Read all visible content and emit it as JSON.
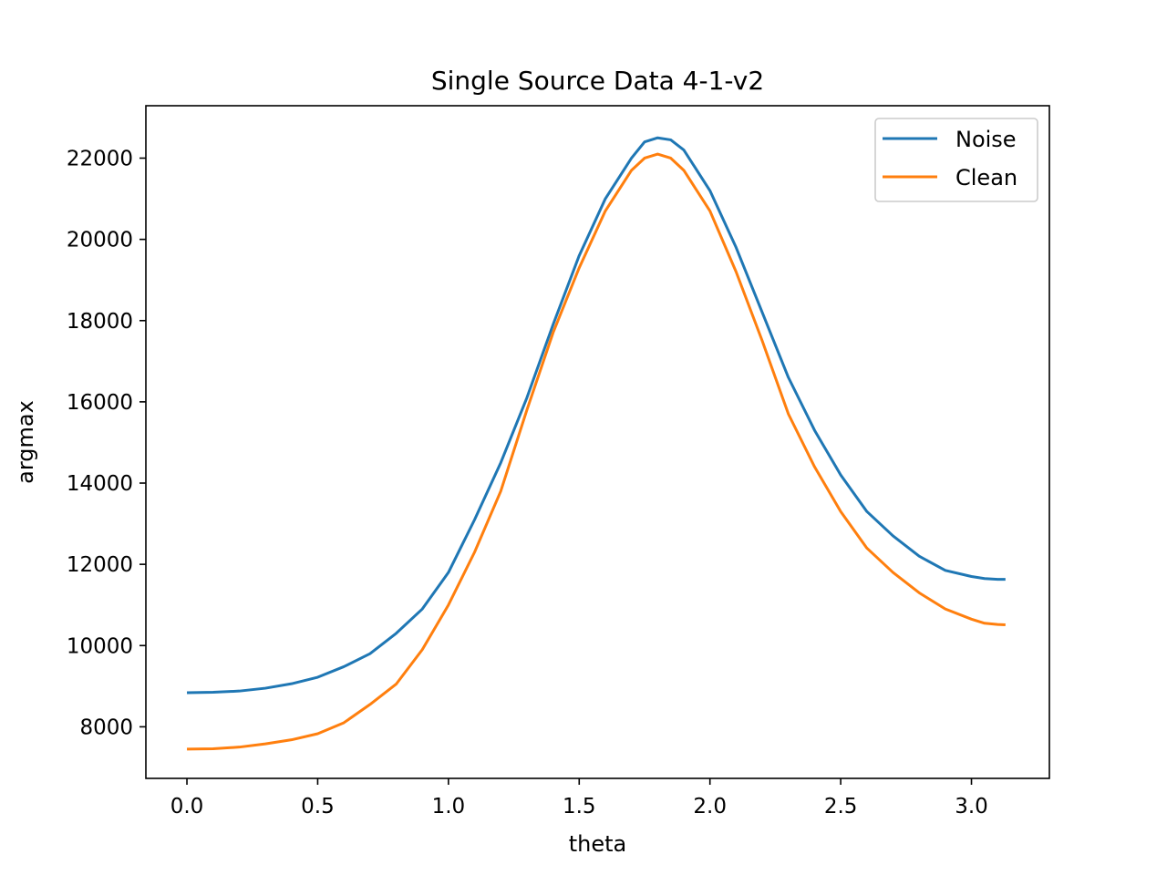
{
  "chart_data": {
    "type": "line",
    "title": "Single Source Data 4-1-v2",
    "xlabel": "theta",
    "ylabel": "argmax",
    "xlim": [
      -0.157,
      3.298
    ],
    "ylim": [
      6730,
      23290
    ],
    "xticks": [
      0.0,
      0.5,
      1.0,
      1.5,
      2.0,
      2.5,
      3.0
    ],
    "xtick_labels": [
      "0.0",
      "0.5",
      "1.0",
      "1.5",
      "2.0",
      "2.5",
      "3.0"
    ],
    "yticks": [
      8000,
      10000,
      12000,
      14000,
      16000,
      18000,
      20000,
      22000
    ],
    "ytick_labels": [
      "8000",
      "10000",
      "12000",
      "14000",
      "16000",
      "18000",
      "20000",
      "22000"
    ],
    "grid": false,
    "legend_position": "top-right",
    "series": [
      {
        "name": "Noise",
        "color": "#1f77b4",
        "x": [
          0.0,
          0.1,
          0.2,
          0.3,
          0.4,
          0.5,
          0.6,
          0.7,
          0.8,
          0.9,
          1.0,
          1.1,
          1.2,
          1.3,
          1.4,
          1.5,
          1.6,
          1.7,
          1.75,
          1.8,
          1.85,
          1.9,
          2.0,
          2.1,
          2.2,
          2.3,
          2.4,
          2.5,
          2.6,
          2.7,
          2.8,
          2.9,
          3.0,
          3.05,
          3.1,
          3.13
        ],
        "y": [
          8840,
          8850,
          8880,
          8950,
          9060,
          9220,
          9480,
          9800,
          10300,
          10900,
          11800,
          13100,
          14500,
          16100,
          17900,
          19600,
          21000,
          22000,
          22400,
          22500,
          22450,
          22200,
          21200,
          19800,
          18200,
          16600,
          15300,
          14200,
          13300,
          12700,
          12200,
          11850,
          11700,
          11650,
          11630,
          11630
        ]
      },
      {
        "name": "Clean",
        "color": "#ff7f0e",
        "x": [
          0.0,
          0.1,
          0.2,
          0.3,
          0.4,
          0.5,
          0.6,
          0.7,
          0.8,
          0.9,
          1.0,
          1.1,
          1.2,
          1.3,
          1.4,
          1.5,
          1.6,
          1.7,
          1.75,
          1.8,
          1.85,
          1.9,
          2.0,
          2.1,
          2.2,
          2.3,
          2.4,
          2.5,
          2.6,
          2.7,
          2.8,
          2.9,
          3.0,
          3.05,
          3.1,
          3.13
        ],
        "y": [
          7450,
          7460,
          7500,
          7580,
          7680,
          7830,
          8100,
          8550,
          9050,
          9900,
          11000,
          12300,
          13800,
          15800,
          17700,
          19300,
          20700,
          21700,
          22000,
          22100,
          22000,
          21700,
          20700,
          19200,
          17500,
          15700,
          14400,
          13300,
          12400,
          11800,
          11300,
          10900,
          10650,
          10550,
          10520,
          10510
        ]
      }
    ]
  }
}
